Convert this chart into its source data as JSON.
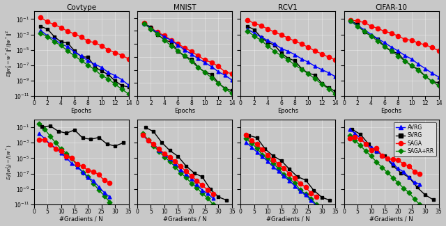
{
  "titles": [
    "Covtype",
    "MNIST",
    "RCV1",
    "CIFAR-10"
  ],
  "algorithms": [
    "AVRG",
    "SVRG",
    "SAGA",
    "SAGA+RR"
  ],
  "colors": [
    "blue",
    "black",
    "red",
    "green"
  ],
  "markers": [
    "^",
    "s",
    "o",
    "D"
  ],
  "ylabel_top": "E||w_0^t - w * ||^2 / ||w * ||^2",
  "ylabel_bottom": "E_t J(w_0^t) - J(w*)",
  "xlabel_top": "Epochs",
  "xlabel_bottom": "#Gradients / N",
  "background": "#c8c8c8",
  "top_ylims": {
    "Covtype": [
      -11,
      0
    ],
    "MNIST": [
      -13,
      0
    ],
    "RCV1": [
      -11,
      0
    ],
    "CIFAR-10": [
      -11,
      0
    ]
  },
  "bot_ylims": {
    "Covtype": [
      -11,
      0
    ],
    "MNIST": [
      -13,
      -2
    ],
    "RCV1": [
      -11,
      0
    ],
    "CIFAR-10": [
      -11,
      0
    ]
  }
}
